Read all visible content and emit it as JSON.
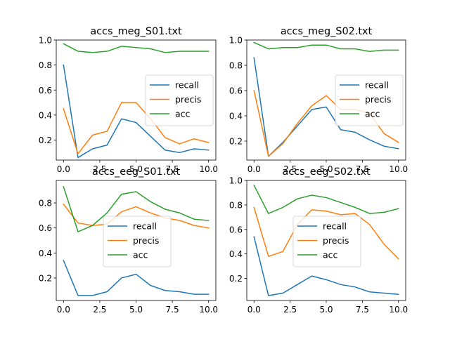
{
  "chart_data": [
    {
      "type": "line",
      "title": "accs_meg_S01.txt",
      "x": [
        0,
        1,
        2,
        3,
        4,
        5,
        6,
        7,
        8,
        9,
        10
      ],
      "xlim": [
        -0.5,
        10.5
      ],
      "ylim": [
        0.04,
        1.0
      ],
      "xticks": [
        0.0,
        2.5,
        5.0,
        7.5,
        10.0
      ],
      "xtick_labels": [
        "0.0",
        "2.5",
        "5.0",
        "7.5",
        "10.0"
      ],
      "yticks": [
        0.2,
        0.4,
        0.6,
        0.8,
        1.0
      ],
      "ytick_labels": [
        "0.2",
        "0.4",
        "0.6",
        "0.8",
        "1.0"
      ],
      "legend": "center-right",
      "series": [
        {
          "name": "recall",
          "color": "#1f77b4",
          "values": [
            0.8,
            0.06,
            0.13,
            0.16,
            0.37,
            0.34,
            0.23,
            0.12,
            0.1,
            0.13,
            0.12
          ]
        },
        {
          "name": "precis",
          "color": "#ff7f0e",
          "values": [
            0.45,
            0.09,
            0.24,
            0.27,
            0.5,
            0.5,
            0.37,
            0.22,
            0.17,
            0.21,
            0.18
          ]
        },
        {
          "name": "acc",
          "color": "#2ca02c",
          "values": [
            0.97,
            0.91,
            0.9,
            0.91,
            0.95,
            0.94,
            0.93,
            0.9,
            0.91,
            0.91,
            0.91
          ]
        }
      ]
    },
    {
      "type": "line",
      "title": "accs_meg_S02.txt",
      "x": [
        0,
        1,
        2,
        3,
        4,
        5,
        6,
        7,
        8,
        9,
        10
      ],
      "xlim": [
        -0.5,
        10.5
      ],
      "ylim": [
        0.05,
        1.0
      ],
      "xticks": [
        0.0,
        2.5,
        5.0,
        7.5,
        10.0
      ],
      "xtick_labels": [
        "0.0",
        "2.5",
        "5.0",
        "7.5",
        "10.0"
      ],
      "yticks": [
        0.2,
        0.4,
        0.6,
        0.8,
        1.0
      ],
      "ytick_labels": [
        "0.2",
        "0.4",
        "0.6",
        "0.8",
        "1.0"
      ],
      "legend": "center-right",
      "series": [
        {
          "name": "recall",
          "color": "#1f77b4",
          "values": [
            0.86,
            0.08,
            0.19,
            0.32,
            0.45,
            0.47,
            0.29,
            0.27,
            0.21,
            0.16,
            0.14
          ]
        },
        {
          "name": "precis",
          "color": "#ff7f0e",
          "values": [
            0.6,
            0.08,
            0.18,
            0.34,
            0.48,
            0.56,
            0.45,
            0.45,
            0.42,
            0.26,
            0.19
          ]
        },
        {
          "name": "acc",
          "color": "#2ca02c",
          "values": [
            0.98,
            0.93,
            0.94,
            0.94,
            0.96,
            0.96,
            0.93,
            0.93,
            0.91,
            0.92,
            0.92
          ]
        }
      ]
    },
    {
      "type": "line",
      "title": "accs_eeg_S01.txt",
      "x": [
        0,
        1,
        2,
        3,
        4,
        5,
        6,
        7,
        8,
        9,
        10
      ],
      "xlim": [
        -0.5,
        10.5
      ],
      "ylim": [
        0.02,
        0.98
      ],
      "xticks": [
        0.0,
        2.5,
        5.0,
        7.5,
        10.0
      ],
      "xtick_labels": [
        "0.0",
        "2.5",
        "5.0",
        "7.5",
        "10.0"
      ],
      "yticks": [
        0.2,
        0.4,
        0.6,
        0.8
      ],
      "ytick_labels": [
        "0.2",
        "0.4",
        "0.6",
        "0.8"
      ],
      "legend": "center",
      "series": [
        {
          "name": "recall",
          "color": "#1f77b4",
          "values": [
            0.34,
            0.06,
            0.06,
            0.09,
            0.2,
            0.23,
            0.14,
            0.1,
            0.09,
            0.07,
            0.07
          ]
        },
        {
          "name": "precis",
          "color": "#ff7f0e",
          "values": [
            0.79,
            0.64,
            0.62,
            0.63,
            0.73,
            0.77,
            0.72,
            0.68,
            0.66,
            0.62,
            0.6
          ]
        },
        {
          "name": "acc",
          "color": "#2ca02c",
          "values": [
            0.93,
            0.57,
            0.62,
            0.72,
            0.87,
            0.89,
            0.81,
            0.75,
            0.72,
            0.67,
            0.66
          ]
        }
      ]
    },
    {
      "type": "line",
      "title": "accs_eeg_S02.txt",
      "x": [
        0,
        1,
        2,
        3,
        4,
        5,
        6,
        7,
        8,
        9,
        10
      ],
      "xlim": [
        -0.5,
        10.5
      ],
      "ylim": [
        0.02,
        1.0
      ],
      "xticks": [
        0.0,
        2.5,
        5.0,
        7.5,
        10.0
      ],
      "xtick_labels": [
        "0.0",
        "2.5",
        "5.0",
        "7.5",
        "10.0"
      ],
      "yticks": [
        0.2,
        0.4,
        0.6,
        0.8,
        1.0
      ],
      "ytick_labels": [
        "0.2",
        "0.4",
        "0.6",
        "0.8",
        "1.0"
      ],
      "legend": "center",
      "series": [
        {
          "name": "recall",
          "color": "#1f77b4",
          "values": [
            0.54,
            0.06,
            0.08,
            0.15,
            0.22,
            0.19,
            0.15,
            0.13,
            0.09,
            0.08,
            0.07
          ]
        },
        {
          "name": "precis",
          "color": "#ff7f0e",
          "values": [
            0.78,
            0.38,
            0.42,
            0.64,
            0.76,
            0.75,
            0.72,
            0.73,
            0.64,
            0.48,
            0.36
          ]
        },
        {
          "name": "acc",
          "color": "#2ca02c",
          "values": [
            0.96,
            0.73,
            0.78,
            0.85,
            0.88,
            0.86,
            0.82,
            0.78,
            0.73,
            0.74,
            0.77
          ]
        }
      ]
    }
  ]
}
